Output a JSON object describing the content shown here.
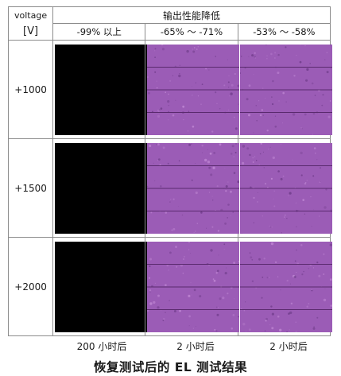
{
  "table": {
    "voltage_header": "voltage",
    "voltage_unit": "[V]",
    "group_header": "输出性能降低",
    "columns": [
      "-99% 以上",
      "-65% ～ -71%",
      "-53% ～ -58%"
    ],
    "rows": [
      {
        "voltage": "+1000",
        "images": [
          "black",
          "purple",
          "purple"
        ]
      },
      {
        "voltage": "+1500",
        "images": [
          "black",
          "purple",
          "purple"
        ]
      },
      {
        "voltage": "+2000",
        "images": [
          "black",
          "purple",
          "purple"
        ]
      }
    ]
  },
  "footer_labels": [
    "200 小时后",
    "2 小时后",
    "2 小时后"
  ],
  "caption": "恢复测试后的 EL 测试结果",
  "colors": {
    "el_purple": "#9b5cb6",
    "el_line": "#5a2a6e",
    "grid_border": "#8c8c8c"
  }
}
